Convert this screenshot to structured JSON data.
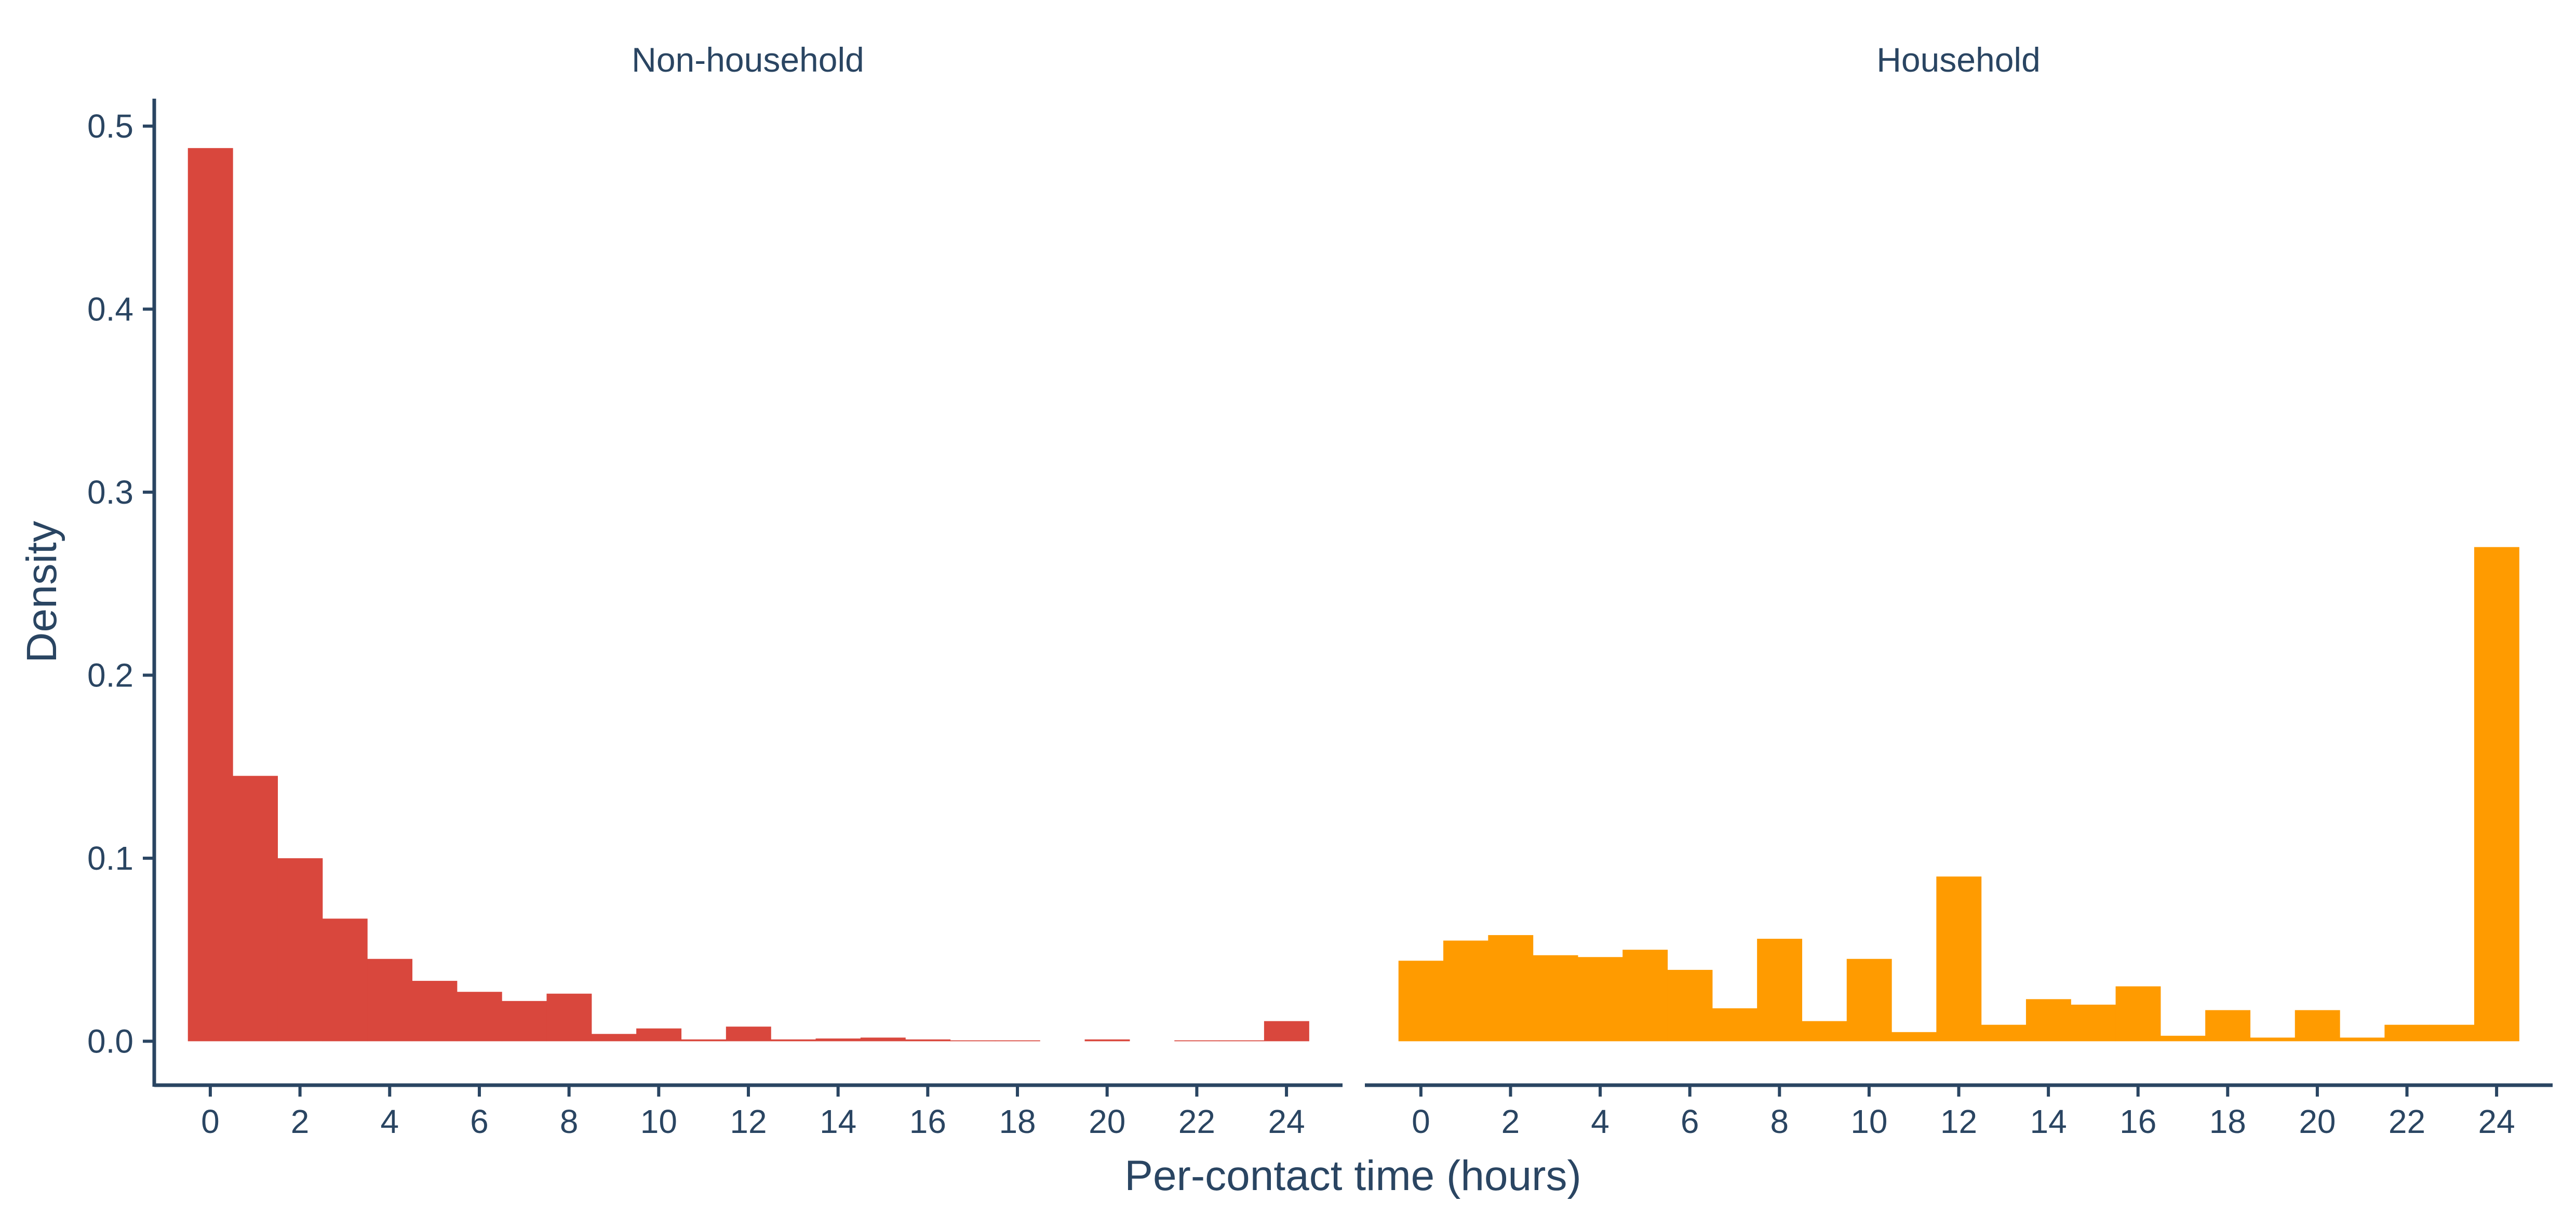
{
  "chart_data": [
    {
      "type": "bar",
      "facet_title": "Non-household",
      "color": "#D9473D",
      "bin_width": 1,
      "bin_centers": [
        0,
        1,
        2,
        3,
        4,
        5,
        6,
        7,
        8,
        9,
        10,
        11,
        12,
        13,
        14,
        15,
        16,
        17,
        18,
        19,
        20,
        21,
        22,
        23,
        24
      ],
      "values": [
        0.488,
        0.145,
        0.1,
        0.067,
        0.045,
        0.033,
        0.027,
        0.022,
        0.026,
        0.004,
        0.007,
        0.001,
        0.008,
        0.001,
        0.0015,
        0.002,
        0.001,
        0.0005,
        0.0005,
        0,
        0.001,
        0,
        0.0005,
        0.0005,
        0.011
      ],
      "x_ticks": [
        "0",
        "2",
        "4",
        "6",
        "8",
        "10",
        "12",
        "14",
        "16",
        "18",
        "20",
        "22",
        "24"
      ],
      "xlim": [
        -1.25,
        25.25
      ],
      "ylim": [
        -0.024,
        0.515
      ],
      "y_ticks": [
        "0.0",
        "0.1",
        "0.2",
        "0.3",
        "0.4",
        "0.5"
      ]
    },
    {
      "type": "bar",
      "facet_title": "Household",
      "color": "#FF9B00",
      "bin_width": 1,
      "bin_centers": [
        0,
        1,
        2,
        3,
        4,
        5,
        6,
        7,
        8,
        9,
        10,
        11,
        12,
        13,
        14,
        15,
        16,
        17,
        18,
        19,
        20,
        21,
        22,
        23,
        24
      ],
      "values": [
        0.044,
        0.055,
        0.058,
        0.047,
        0.046,
        0.05,
        0.039,
        0.018,
        0.056,
        0.011,
        0.045,
        0.005,
        0.09,
        0.009,
        0.023,
        0.02,
        0.03,
        0.003,
        0.017,
        0.002,
        0.017,
        0.002,
        0.009,
        0.009,
        0.27
      ],
      "x_ticks": [
        "0",
        "2",
        "4",
        "6",
        "8",
        "10",
        "12",
        "14",
        "16",
        "18",
        "20",
        "22",
        "24"
      ],
      "xlim": [
        -1.25,
        25.25
      ],
      "ylim": [
        -0.024,
        0.515
      ]
    }
  ],
  "axes": {
    "xlabel": "Per-contact time (hours)",
    "ylabel": "Density"
  },
  "colors": {
    "text": "#2A4562",
    "axis": "#2A4562"
  }
}
